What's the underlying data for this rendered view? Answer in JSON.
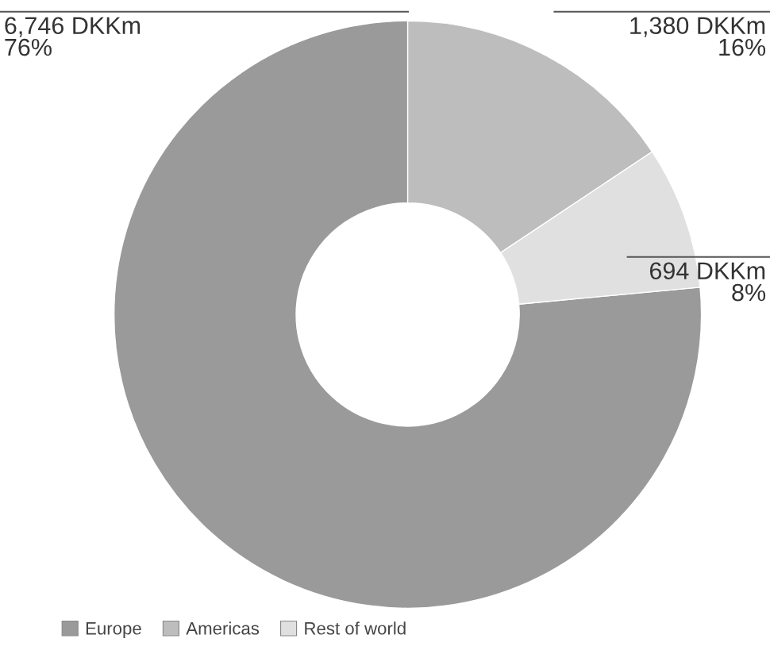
{
  "chart_data": {
    "type": "donut",
    "categories": [
      "Europe",
      "Americas",
      "Rest of world"
    ],
    "values": [
      6746,
      1380,
      694
    ],
    "colors": [
      "#9a9a9a",
      "#bdbdbd",
      "#e0e0e0"
    ],
    "value_labels": [
      "6,746 DKKm\n76%",
      "1,380 DKKm\n16%",
      "694 DKKm\n8%"
    ],
    "legend": "bottom left"
  }
}
